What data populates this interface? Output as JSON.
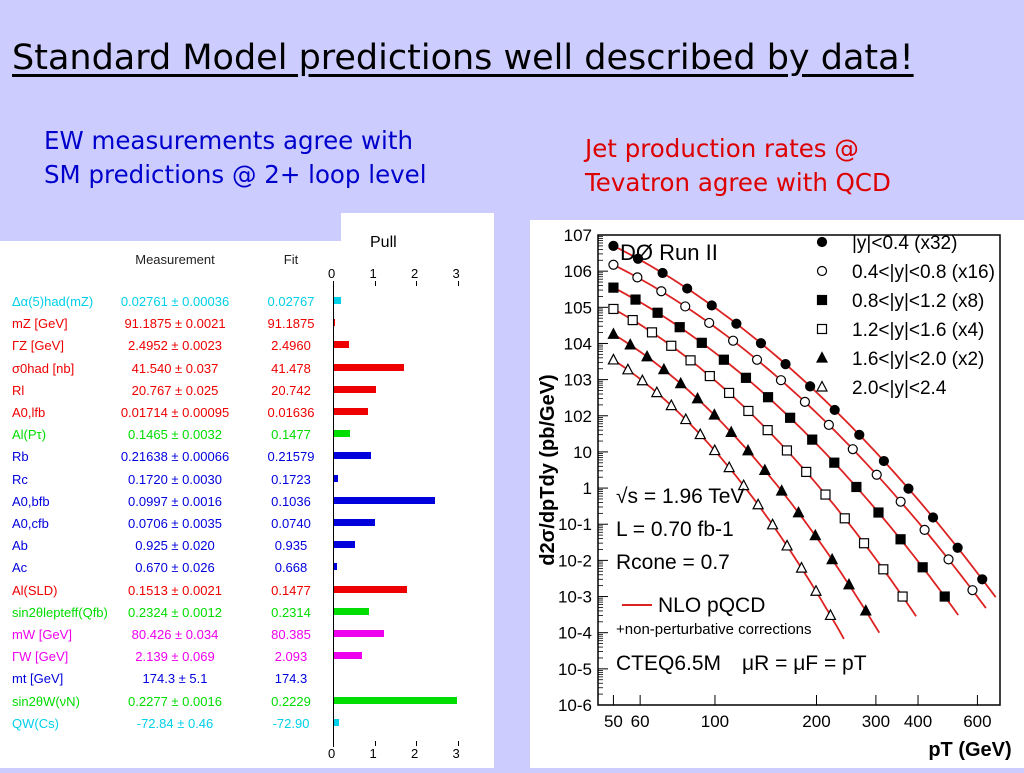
{
  "slide": {
    "title": "Standard Model predictions well described by data!",
    "left_subtitle_line1": "EW measurements agree with",
    "left_subtitle_line2": "SM predictions @ 2+ loop level",
    "right_subtitle_line1": "Jet production rates @",
    "right_subtitle_line2": "Tevatron agree with QCD"
  },
  "chart_data": [
    {
      "type": "bar",
      "title": "Pull",
      "columns": [
        "Measurement",
        "Fit"
      ],
      "axis_ticks": [
        "0",
        "1",
        "2",
        "3"
      ],
      "xlim": [
        0,
        3
      ],
      "rows": [
        {
          "name": "Δα(5)had(mZ)",
          "measurement": "0.02761 ± 0.00036",
          "fit": "0.02767",
          "pull": 0.16,
          "color": "#00d0e8"
        },
        {
          "name": "mZ [GeV]",
          "measurement": "91.1875 ± 0.0021",
          "fit": "91.1875",
          "pull": 0.02,
          "color": "#ee0000"
        },
        {
          "name": "ΓZ [GeV]",
          "measurement": "2.4952 ± 0.0023",
          "fit": "2.4960",
          "pull": 0.36,
          "color": "#ee0000"
        },
        {
          "name": "σ0had [nb]",
          "measurement": "41.540 ± 0.037",
          "fit": "41.478",
          "pull": 1.69,
          "color": "#ee0000"
        },
        {
          "name": "Rl",
          "measurement": "20.767 ± 0.025",
          "fit": "20.742",
          "pull": 1.01,
          "color": "#ee0000"
        },
        {
          "name": "A0,lfb",
          "measurement": "0.01714 ± 0.00095",
          "fit": "0.01636",
          "pull": 0.82,
          "color": "#ee0000"
        },
        {
          "name": "Al(Pτ)",
          "measurement": "0.1465 ± 0.0032",
          "fit": "0.1477",
          "pull": 0.38,
          "color": "#00dd00"
        },
        {
          "name": "Rb",
          "measurement": "0.21638 ± 0.00066",
          "fit": "0.21579",
          "pull": 0.9,
          "color": "#0000dd"
        },
        {
          "name": "Rc",
          "measurement": "0.1720 ± 0.0030",
          "fit": "0.1723",
          "pull": 0.1,
          "color": "#0000dd"
        },
        {
          "name": "A0,bfb",
          "measurement": "0.0997 ± 0.0016",
          "fit": "0.1036",
          "pull": 2.43,
          "color": "#0000dd"
        },
        {
          "name": "A0,cfb",
          "measurement": "0.0706 ± 0.0035",
          "fit": "0.0740",
          "pull": 0.98,
          "color": "#0000dd"
        },
        {
          "name": "Ab",
          "measurement": "0.925 ± 0.020",
          "fit": "0.935",
          "pull": 0.51,
          "color": "#0000dd"
        },
        {
          "name": "Ac",
          "measurement": "0.670 ± 0.026",
          "fit": "0.668",
          "pull": 0.08,
          "color": "#0000dd"
        },
        {
          "name": "Al(SLD)",
          "measurement": "0.1513 ± 0.0021",
          "fit": "0.1477",
          "pull": 1.75,
          "color": "#ee0000"
        },
        {
          "name": "sin2θlepteff(Qfb)",
          "measurement": "0.2324 ± 0.0012",
          "fit": "0.2314",
          "pull": 0.84,
          "color": "#00dd00"
        },
        {
          "name": "mW [GeV]",
          "measurement": "80.426 ± 0.034",
          "fit": "80.385",
          "pull": 1.21,
          "color": "#ee00ee"
        },
        {
          "name": "ΓW [GeV]",
          "measurement": "2.139 ± 0.069",
          "fit": "2.093",
          "pull": 0.67,
          "color": "#ee00ee"
        },
        {
          "name": "mt [GeV]",
          "measurement": "174.3 ± 5.1",
          "fit": "174.3",
          "pull": 0.0,
          "color": "#0000dd"
        },
        {
          "name": "sin2θW(νN)",
          "measurement": "0.2277 ± 0.0016",
          "fit": "0.2229",
          "pull": 2.97,
          "color": "#00dd00"
        },
        {
          "name": "QW(Cs)",
          "measurement": "-72.84 ± 0.46",
          "fit": "-72.90",
          "pull": 0.12,
          "color": "#00d0e8"
        }
      ]
    },
    {
      "type": "scatter",
      "experiment_label": "DØ Run II",
      "xlabel": "pT (GeV)",
      "ylabel": "d2σ/dpTdy (pb/GeV)",
      "x_scale": "log",
      "y_scale": "log",
      "xlim": [
        45,
        700
      ],
      "ylim": [
        1e-06,
        10000000.0
      ],
      "x_ticks": [
        "50",
        "60",
        "100",
        "200",
        "300",
        "400",
        "600"
      ],
      "y_ticks": [
        "10-6",
        "10-5",
        "10-4",
        "10-3",
        "10-2",
        "10-1",
        "1",
        "10",
        "102",
        "103",
        "104",
        "105",
        "106",
        "107"
      ],
      "annotations": {
        "sqrt_s": "√s = 1.96 TeV",
        "lumi": "L = 0.70 fb-1",
        "rcone": "Rcone = 0.7",
        "nlo_legend": "NLO pQCD",
        "np_corr": "+non-perturbative corrections",
        "pdf": "CTEQ6.5M",
        "scale": "μR = μF = pT"
      },
      "series": [
        {
          "name": "|y|<0.4 (x32)",
          "marker": "filled-circle",
          "pt_min": 50,
          "pt_max": 620,
          "y_at_min": 5000000.0,
          "y_at_max": 0.003
        },
        {
          "name": "0.4<|y|<0.8 (x16)",
          "marker": "open-circle",
          "pt_min": 50,
          "pt_max": 580,
          "y_at_min": 1500000.0,
          "y_at_max": 0.0015
        },
        {
          "name": "0.8<|y|<1.2 (x8)",
          "marker": "filled-square",
          "pt_min": 50,
          "pt_max": 480,
          "y_at_min": 350000.0,
          "y_at_max": 0.001
        },
        {
          "name": "1.2<|y|<1.6 (x4)",
          "marker": "open-square",
          "pt_min": 50,
          "pt_max": 360,
          "y_at_min": 90000.0,
          "y_at_max": 0.001
        },
        {
          "name": "1.6<|y|<2.0 (x2)",
          "marker": "filled-triangle",
          "pt_min": 50,
          "pt_max": 280,
          "y_at_min": 18000.0,
          "y_at_max": 0.0004
        },
        {
          "name": "2.0<|y|<2.4",
          "marker": "open-triangle",
          "pt_min": 50,
          "pt_max": 220,
          "y_at_min": 3500.0,
          "y_at_max": 0.0003
        }
      ]
    }
  ]
}
